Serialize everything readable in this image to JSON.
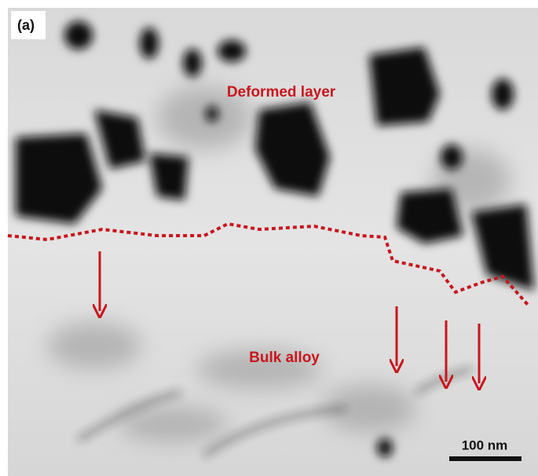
{
  "panel_label": "(a)",
  "annotations": {
    "upper": "Deformed layer",
    "lower": "Bulk alloy"
  },
  "scale_bar": "100 nm"
}
